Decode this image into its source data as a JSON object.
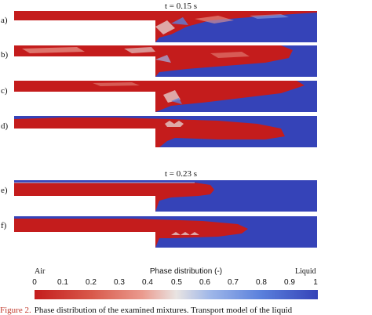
{
  "time_labels": [
    "t = 0.15 s",
    "t = 0.23 s"
  ],
  "panels": [
    {
      "label": "a)"
    },
    {
      "label": "b)"
    },
    {
      "label": "c)"
    },
    {
      "label": "d)"
    },
    {
      "label": "e)"
    },
    {
      "label": "f)"
    }
  ],
  "colorbar": {
    "left_label": "Air",
    "title": "Phase distribution (-)",
    "right_label": "Liquid",
    "ticks": [
      "0",
      "0.1",
      "0.2",
      "0.3",
      "0.4",
      "0.5",
      "0.6",
      "0.7",
      "0.8",
      "0.9",
      "1"
    ]
  },
  "colors": {
    "air": "#c41c1c",
    "liquid": "#3543b8"
  },
  "caption": {
    "figure": "Figure 2.",
    "text": "Phase distribution of the examined mixtures. Transport model of the liquid"
  }
}
